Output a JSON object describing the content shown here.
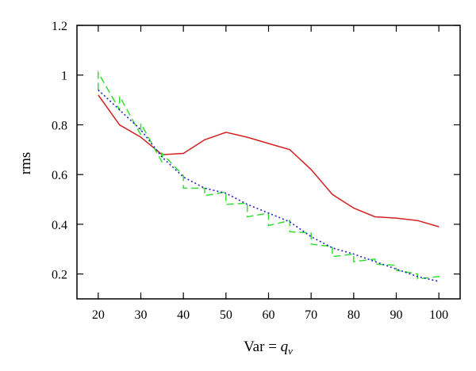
{
  "chart_data": {
    "type": "line",
    "title": "",
    "xlabel_prefix": "Var = ",
    "xlabel_var": "q",
    "xlabel_sub": "v",
    "ylabel": "rms",
    "xlim": [
      15,
      105
    ],
    "ylim": [
      0.1,
      1.2
    ],
    "xticks": [
      20,
      30,
      40,
      50,
      60,
      70,
      80,
      90,
      100
    ],
    "yticks": [
      0.2,
      0.4,
      0.6,
      0.8,
      1.0,
      1.2
    ],
    "ytick_labels": [
      "0.2",
      "0.4",
      "0.6",
      "0.8",
      "1",
      "1.2"
    ],
    "grid": false,
    "legend": "none",
    "series": [
      {
        "color": "#d42020",
        "style": "solid",
        "x": [
          20,
          25,
          30,
          35,
          40,
          45,
          50,
          55,
          60,
          65,
          70,
          75,
          80,
          85,
          90,
          95,
          100
        ],
        "y": [
          0.92,
          0.8,
          0.75,
          0.68,
          0.685,
          0.74,
          0.77,
          0.75,
          0.725,
          0.7,
          0.62,
          0.52,
          0.465,
          0.43,
          0.425,
          0.415,
          0.39
        ]
      },
      {
        "color": "#33dd33",
        "style": "dashed",
        "x": [
          20,
          20,
          25,
          25,
          30,
          30,
          35,
          35,
          40,
          40,
          45,
          45,
          50,
          50,
          55,
          55,
          60,
          60,
          65,
          65,
          70,
          70,
          75,
          75,
          80,
          80,
          85,
          85,
          90,
          90,
          95,
          95,
          100,
          100
        ],
        "y": [
          0.94,
          1.01,
          0.86,
          0.915,
          0.76,
          0.805,
          0.65,
          0.685,
          0.595,
          0.545,
          0.545,
          0.515,
          0.53,
          0.48,
          0.485,
          0.43,
          0.445,
          0.395,
          0.415,
          0.37,
          0.365,
          0.32,
          0.31,
          0.27,
          0.28,
          0.25,
          0.26,
          0.24,
          0.235,
          0.215,
          0.2,
          0.18,
          0.19,
          0.17
        ]
      },
      {
        "color": "#2222cc",
        "style": "dotted",
        "x": [
          20,
          25,
          30,
          35,
          40,
          45,
          50,
          55,
          60,
          65,
          70,
          75,
          80,
          85,
          90,
          95,
          100
        ],
        "y": [
          0.94,
          0.86,
          0.78,
          0.67,
          0.59,
          0.545,
          0.525,
          0.48,
          0.445,
          0.41,
          0.35,
          0.305,
          0.28,
          0.25,
          0.22,
          0.19,
          0.17
        ]
      }
    ]
  }
}
